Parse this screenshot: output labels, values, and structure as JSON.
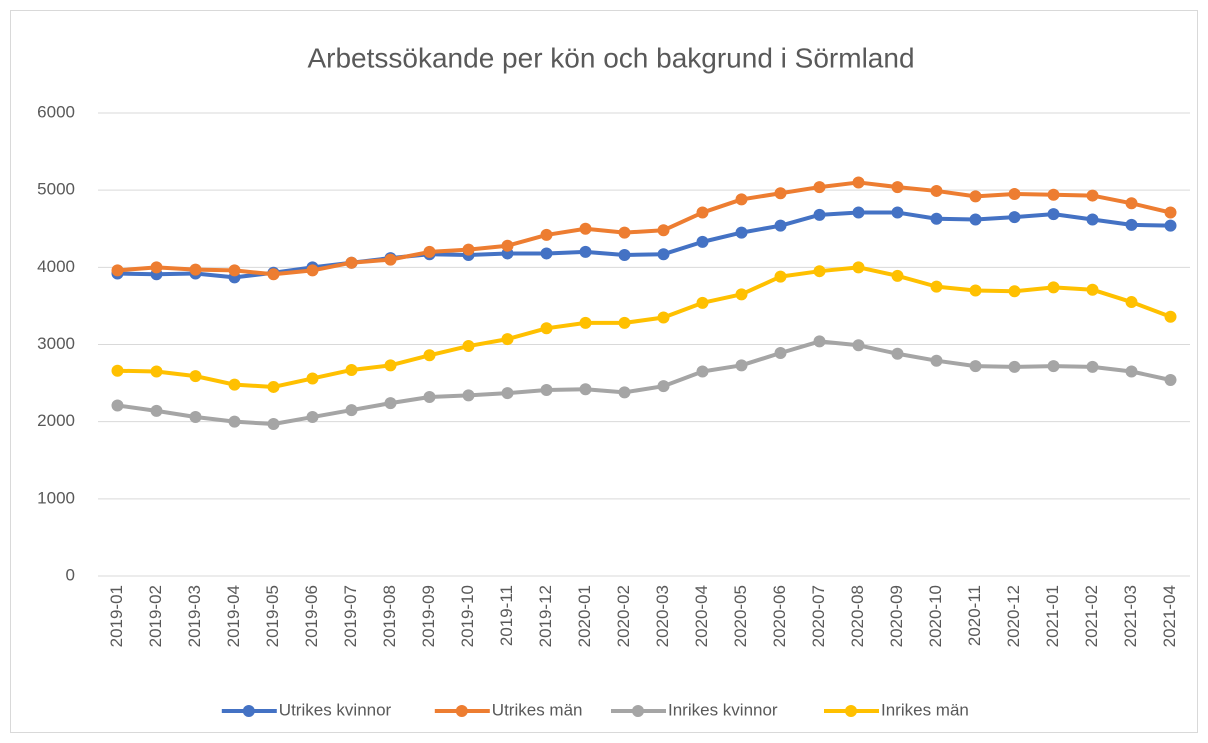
{
  "chart_data": {
    "type": "line",
    "title": "Arbetssökande per kön och bakgrund i Sörmland",
    "categories": [
      "2019-01",
      "2019-02",
      "2019-03",
      "2019-04",
      "2019-05",
      "2019-06",
      "2019-07",
      "2019-08",
      "2019-09",
      "2019-10",
      "2019-11",
      "2019-12",
      "2020-01",
      "2020-02",
      "2020-03",
      "2020-04",
      "2020-05",
      "2020-06",
      "2020-07",
      "2020-08",
      "2020-09",
      "2020-10",
      "2020-11",
      "2020-12",
      "2021-01",
      "2021-02",
      "2021-03",
      "2021-04"
    ],
    "series": [
      {
        "name": "Utrikes kvinnor",
        "color": "#4472c4",
        "values": [
          3920,
          3910,
          3920,
          3870,
          3930,
          4000,
          4060,
          4120,
          4170,
          4160,
          4180,
          4180,
          4200,
          4160,
          4170,
          4330,
          4450,
          4540,
          4680,
          4710,
          4710,
          4630,
          4620,
          4650,
          4690,
          4620,
          4550,
          4540
        ]
      },
      {
        "name": "Utrikes män",
        "color": "#ed7d31",
        "values": [
          3960,
          4000,
          3970,
          3960,
          3910,
          3960,
          4060,
          4100,
          4200,
          4230,
          4280,
          4420,
          4500,
          4450,
          4480,
          4710,
          4880,
          4960,
          5040,
          5100,
          5040,
          4990,
          4920,
          4950,
          4940,
          4930,
          4830,
          4710
        ]
      },
      {
        "name": "Inrikes kvinnor",
        "color": "#a5a5a5",
        "values": [
          2210,
          2140,
          2060,
          2000,
          1970,
          2060,
          2150,
          2240,
          2320,
          2340,
          2370,
          2410,
          2420,
          2380,
          2460,
          2650,
          2730,
          2890,
          3040,
          2990,
          2880,
          2790,
          2720,
          2710,
          2720,
          2710,
          2650,
          2540
        ]
      },
      {
        "name": "Inrikes män",
        "color": "#ffc000",
        "values": [
          2660,
          2650,
          2590,
          2480,
          2450,
          2560,
          2670,
          2730,
          2860,
          2980,
          3070,
          3210,
          3280,
          3280,
          3350,
          3540,
          3650,
          3880,
          3950,
          4000,
          3890,
          3750,
          3700,
          3690,
          3740,
          3710,
          3550,
          3360
        ]
      }
    ],
    "ylim": [
      0,
      6000
    ],
    "yticks": [
      0,
      1000,
      2000,
      3000,
      4000,
      5000,
      6000
    ],
    "grid": true,
    "legend": "bottom"
  }
}
